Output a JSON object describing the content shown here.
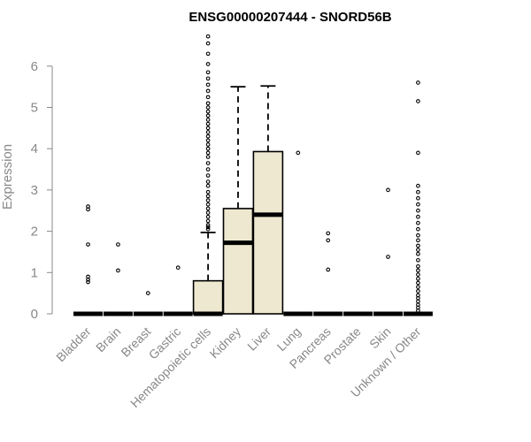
{
  "chart_data": {
    "type": "box",
    "title": "ENSG00000207444 - SNORD56B",
    "xlabel": "",
    "ylabel": "Expression",
    "ylim": [
      0,
      6.8
    ],
    "yticks": [
      0,
      1,
      2,
      3,
      4,
      5,
      6
    ],
    "grid": false,
    "colors": {
      "box_fill": "#EEE8D0",
      "outline": "#000000",
      "axis_text": "#888888"
    },
    "categories": [
      "Bladder",
      "Brain",
      "Breast",
      "Gastric",
      "Hematopoietic cells",
      "Kidney",
      "Liver",
      "Lung",
      "Pancreas",
      "Prostate",
      "Skin",
      "Unknown / Other"
    ],
    "boxes": [
      {
        "q1": 0,
        "median": 0,
        "q3": 0,
        "whisker_low": 0,
        "whisker_high": 0,
        "outliers": [
          0.77,
          0.83,
          0.9,
          1.68,
          2.53,
          2.6
        ]
      },
      {
        "q1": 0,
        "median": 0,
        "q3": 0,
        "whisker_low": 0,
        "whisker_high": 0,
        "outliers": [
          1.05,
          1.68
        ]
      },
      {
        "q1": 0,
        "median": 0,
        "q3": 0,
        "whisker_low": 0,
        "whisker_high": 0,
        "outliers": [
          0.5
        ]
      },
      {
        "q1": 0,
        "median": 0,
        "q3": 0,
        "whisker_low": 0,
        "whisker_high": 0,
        "outliers": [
          1.12
        ]
      },
      {
        "q1": 0,
        "median": 0,
        "q3": 0.8,
        "whisker_low": 0,
        "whisker_high": 1.97,
        "outliers": [
          2.05,
          2.1,
          2.15,
          2.25,
          2.35,
          2.45,
          2.55,
          2.65,
          2.75,
          2.85,
          2.95,
          3.1,
          3.2,
          3.35,
          3.5,
          3.65,
          3.8,
          3.9,
          4.0,
          4.1,
          4.2,
          4.3,
          4.4,
          4.5,
          4.6,
          4.7,
          4.8,
          4.9,
          5.0,
          5.1,
          5.25,
          5.4,
          5.55,
          5.7,
          5.85,
          6.05,
          6.3,
          6.55,
          6.72
        ]
      },
      {
        "q1": 0,
        "median": 1.72,
        "q3": 2.55,
        "whisker_low": 0,
        "whisker_high": 5.5,
        "outliers": []
      },
      {
        "q1": 0,
        "median": 2.4,
        "q3": 3.93,
        "whisker_low": 0,
        "whisker_high": 5.52,
        "outliers": []
      },
      {
        "q1": 0,
        "median": 0,
        "q3": 0,
        "whisker_low": 0,
        "whisker_high": 0,
        "outliers": [
          3.9
        ]
      },
      {
        "q1": 0,
        "median": 0,
        "q3": 0,
        "whisker_low": 0,
        "whisker_high": 0,
        "outliers": [
          1.07,
          1.78,
          1.95
        ]
      },
      {
        "q1": 0,
        "median": 0,
        "q3": 0,
        "whisker_low": 0,
        "whisker_high": 0,
        "outliers": []
      },
      {
        "q1": 0,
        "median": 0,
        "q3": 0,
        "whisker_low": 0,
        "whisker_high": 0,
        "outliers": [
          1.38,
          3.0
        ]
      },
      {
        "q1": 0,
        "median": 0,
        "q3": 0,
        "whisker_low": 0,
        "whisker_high": 0,
        "outliers": [
          0.08,
          0.15,
          0.22,
          0.3,
          0.38,
          0.45,
          0.55,
          0.65,
          0.75,
          0.85,
          0.95,
          1.05,
          1.15,
          1.3,
          1.45,
          1.55,
          1.65,
          1.78,
          1.9,
          2.05,
          2.2,
          2.35,
          2.5,
          2.65,
          2.8,
          2.95,
          3.1,
          3.9,
          5.15,
          5.6
        ]
      }
    ]
  }
}
